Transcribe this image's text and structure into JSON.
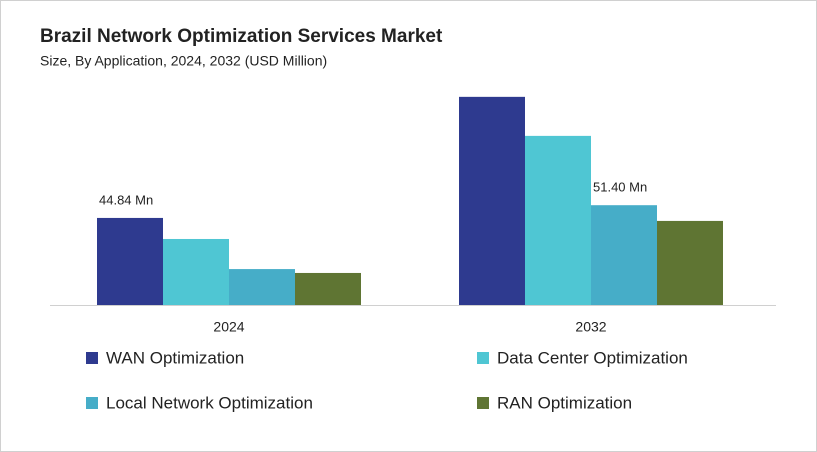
{
  "chart_data": {
    "type": "bar",
    "title": "Brazil Network Optimization Services Market",
    "subtitle": "Size, By Application, 2024, 2032 (USD Million)",
    "categories": [
      "2024",
      "2032"
    ],
    "ylim": [
      0,
      120
    ],
    "legend": "bottom",
    "series": [
      {
        "name": "WAN Optimization",
        "color": "#2e3a8f",
        "values": [
          44.84,
          107.2
        ],
        "value_labels": [
          "44.84  Mn",
          null
        ]
      },
      {
        "name": "Data Center Optimization",
        "color": "#4fc6d3",
        "values": [
          34.0,
          87.1
        ]
      },
      {
        "name": "Local Network Optimization",
        "color": "#46adc8",
        "values": [
          18.5,
          51.4
        ],
        "value_labels": [
          null,
          "51.40 Mn"
        ]
      },
      {
        "name": "RAN Optimization",
        "color": "#5f7533",
        "values": [
          16.5,
          43.3
        ]
      }
    ]
  }
}
